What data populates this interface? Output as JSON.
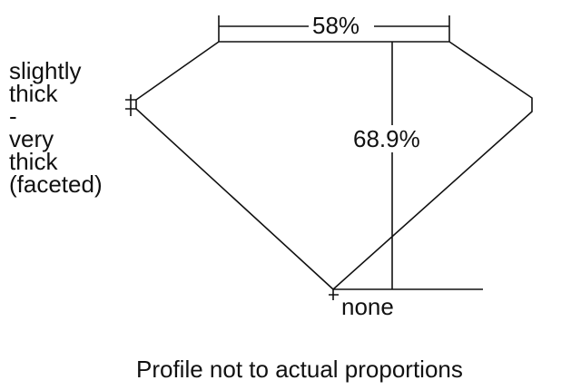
{
  "girdle_label": [
    "slightly",
    "thick",
    "-",
    "very",
    "thick",
    "(faceted)"
  ],
  "table_percent": "58%",
  "depth_percent": "68.9%",
  "culet_label": "none",
  "caption": "Profile not to actual proportions"
}
